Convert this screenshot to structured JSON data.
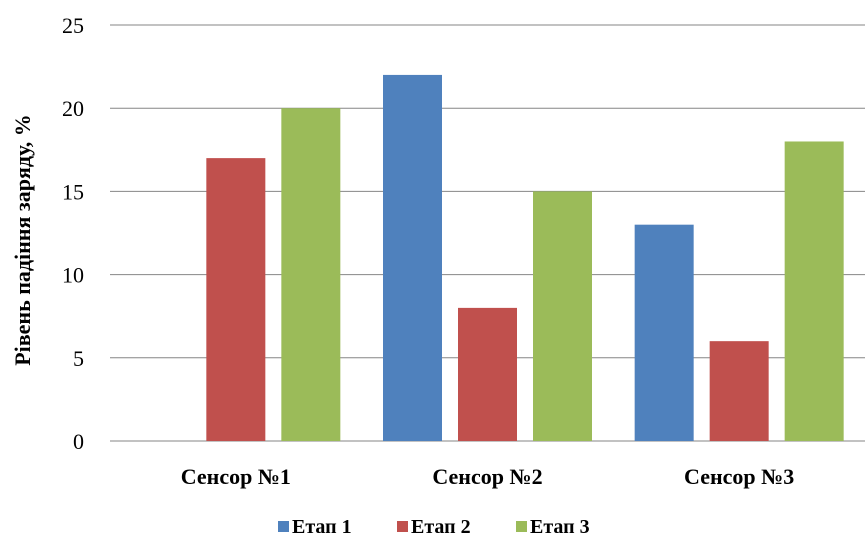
{
  "chart_data": {
    "type": "bar",
    "categories": [
      "Сенсор №1",
      "Сенсор №2",
      "Сенсор №3"
    ],
    "series": [
      {
        "name": "Етап 1",
        "values": [
          0,
          22,
          13
        ],
        "color": "#4F81BD"
      },
      {
        "name": "Етап 2",
        "values": [
          17,
          8,
          6
        ],
        "color": "#C0504D"
      },
      {
        "name": "Етап 3",
        "values": [
          20,
          15,
          18
        ],
        "color": "#9BBB59"
      }
    ],
    "ylabel": "Рівень падіння заряду, %",
    "ylim": [
      0,
      25
    ],
    "yticks": [
      "0",
      "5",
      "10",
      "15",
      "20",
      "25"
    ],
    "grid": true,
    "legend": "bottom"
  }
}
